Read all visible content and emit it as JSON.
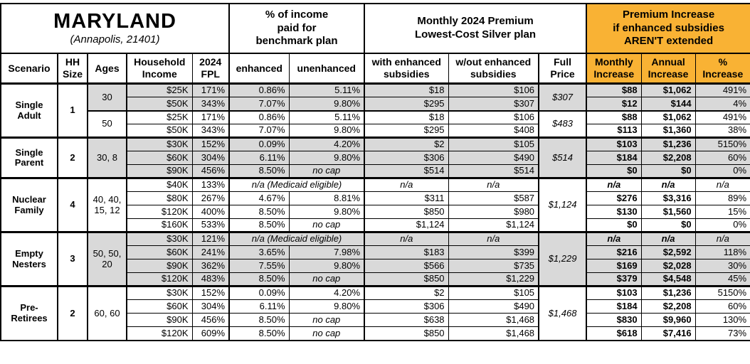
{
  "header": {
    "region_title": "MARYLAND",
    "region_subtitle": "(Annapolis, 21401)",
    "group_pct_income": "% of income\npaid for\nbenchmark plan",
    "group_premium": "Monthly 2024 Premium\nLowest-Cost Silver plan",
    "group_increase": "Premium Increase\nif enhanced subsidies\nAREN'T extended",
    "columns": {
      "scenario": "Scenario",
      "hh_size": "HH\nSize",
      "ages": "Ages",
      "income": "Household\nIncome",
      "fpl": "2024\nFPL",
      "enhanced": "enhanced",
      "unenhanced": "unenhanced",
      "with_subsidies": "with enhanced\nsubsidies",
      "without_subsidies": "w/out enhanced\nsubsidies",
      "full_price": "Full\nPrice",
      "monthly_increase": "Monthly\nIncrease",
      "annual_increase": "Annual\nIncrease",
      "pct_increase": "%\nIncrease"
    }
  },
  "colors": {
    "accent_orange": "#F9B234",
    "row_shade_gray": "#D9D9D9"
  },
  "groups": [
    {
      "scenario": "Single\nAdult",
      "hh_size": "1",
      "ages_cells": [
        {
          "label": "30",
          "span": 2,
          "shaded": true
        },
        {
          "label": "50",
          "span": 2,
          "shaded": false
        }
      ],
      "full_price_cells": [
        {
          "value": "$307",
          "span": 2,
          "shaded": true
        },
        {
          "value": "$483",
          "span": 2,
          "shaded": false
        }
      ],
      "rows": [
        {
          "income": "$25K",
          "fpl": "171%",
          "enhanced": "0.86%",
          "unenhanced": "5.11%",
          "with_subsidies": "$18",
          "without_subsidies": "$106",
          "monthly": "$88",
          "annual": "$1,062",
          "pct": "491%",
          "shaded": true
        },
        {
          "income": "$50K",
          "fpl": "343%",
          "enhanced": "7.07%",
          "unenhanced": "9.80%",
          "with_subsidies": "$295",
          "without_subsidies": "$307",
          "monthly": "$12",
          "annual": "$144",
          "pct": "4%",
          "shaded": true
        },
        {
          "income": "$25K",
          "fpl": "171%",
          "enhanced": "0.86%",
          "unenhanced": "5.11%",
          "with_subsidies": "$18",
          "without_subsidies": "$106",
          "monthly": "$88",
          "annual": "$1,062",
          "pct": "491%",
          "shaded": false,
          "sub_start": true
        },
        {
          "income": "$50K",
          "fpl": "343%",
          "enhanced": "7.07%",
          "unenhanced": "9.80%",
          "with_subsidies": "$295",
          "without_subsidies": "$408",
          "monthly": "$113",
          "annual": "$1,360",
          "pct": "38%",
          "shaded": false
        }
      ]
    },
    {
      "scenario": "Single\nParent",
      "hh_size": "2",
      "ages_cells": [
        {
          "label": "30, 8",
          "span": 3,
          "shaded": true
        }
      ],
      "full_price_cells": [
        {
          "value": "$514",
          "span": 3,
          "shaded": true
        }
      ],
      "rows": [
        {
          "income": "$30K",
          "fpl": "152%",
          "enhanced": "0.09%",
          "unenhanced": "4.20%",
          "with_subsidies": "$2",
          "without_subsidies": "$105",
          "monthly": "$103",
          "annual": "$1,236",
          "pct": "5150%",
          "shaded": true
        },
        {
          "income": "$60K",
          "fpl": "304%",
          "enhanced": "6.11%",
          "unenhanced": "9.80%",
          "with_subsidies": "$306",
          "without_subsidies": "$490",
          "monthly": "$184",
          "annual": "$2,208",
          "pct": "60%",
          "shaded": true
        },
        {
          "income": "$90K",
          "fpl": "456%",
          "enhanced": "8.50%",
          "unenhanced": "no cap",
          "with_subsidies": "$514",
          "without_subsidies": "$514",
          "monthly": "$0",
          "annual": "$0",
          "pct": "0%",
          "shaded": true
        }
      ]
    },
    {
      "scenario": "Nuclear\nFamily",
      "hh_size": "4",
      "ages_cells": [
        {
          "label": "40, 40,\n15, 12",
          "span": 4,
          "shaded": false
        }
      ],
      "full_price_cells": [
        {
          "value": "$1,124",
          "span": 4,
          "shaded": false
        }
      ],
      "rows": [
        {
          "income": "$40K",
          "fpl": "133%",
          "medicaid": true,
          "medicaid_text": "n/a (Medicaid eligible)",
          "with_subsidies": "n/a",
          "without_subsidies": "n/a",
          "monthly": "n/a",
          "annual": "n/a",
          "pct": "n/a",
          "shaded": false
        },
        {
          "income": "$80K",
          "fpl": "267%",
          "enhanced": "4.67%",
          "unenhanced": "8.81%",
          "with_subsidies": "$311",
          "without_subsidies": "$587",
          "monthly": "$276",
          "annual": "$3,316",
          "pct": "89%",
          "shaded": false
        },
        {
          "income": "$120K",
          "fpl": "400%",
          "enhanced": "8.50%",
          "unenhanced": "9.80%",
          "with_subsidies": "$850",
          "without_subsidies": "$980",
          "monthly": "$130",
          "annual": "$1,560",
          "pct": "15%",
          "shaded": false
        },
        {
          "income": "$160K",
          "fpl": "533%",
          "enhanced": "8.50%",
          "unenhanced": "no cap",
          "with_subsidies": "$1,124",
          "without_subsidies": "$1,124",
          "monthly": "$0",
          "annual": "$0",
          "pct": "0%",
          "shaded": false
        }
      ]
    },
    {
      "scenario": "Empty\nNesters",
      "hh_size": "3",
      "ages_cells": [
        {
          "label": "50, 50,\n20",
          "span": 4,
          "shaded": true
        }
      ],
      "full_price_cells": [
        {
          "value": "$1,229",
          "span": 4,
          "shaded": true
        }
      ],
      "rows": [
        {
          "income": "$30K",
          "fpl": "121%",
          "medicaid": true,
          "medicaid_text": "n/a (Medicaid eligible)",
          "with_subsidies": "n/a",
          "without_subsidies": "n/a",
          "monthly": "n/a",
          "annual": "n/a",
          "pct": "n/a",
          "shaded": true
        },
        {
          "income": "$60K",
          "fpl": "241%",
          "enhanced": "3.65%",
          "unenhanced": "7.98%",
          "with_subsidies": "$183",
          "without_subsidies": "$399",
          "monthly": "$216",
          "annual": "$2,592",
          "pct": "118%",
          "shaded": true
        },
        {
          "income": "$90K",
          "fpl": "362%",
          "enhanced": "7.55%",
          "unenhanced": "9.80%",
          "with_subsidies": "$566",
          "without_subsidies": "$735",
          "monthly": "$169",
          "annual": "$2,028",
          "pct": "30%",
          "shaded": true
        },
        {
          "income": "$120K",
          "fpl": "483%",
          "enhanced": "8.50%",
          "unenhanced": "no cap",
          "with_subsidies": "$850",
          "without_subsidies": "$1,229",
          "monthly": "$379",
          "annual": "$4,548",
          "pct": "45%",
          "shaded": true
        }
      ]
    },
    {
      "scenario": "Pre-\nRetirees",
      "hh_size": "2",
      "ages_cells": [
        {
          "label": "60, 60",
          "span": 4,
          "shaded": false
        }
      ],
      "full_price_cells": [
        {
          "value": "$1,468",
          "span": 4,
          "shaded": false
        }
      ],
      "rows": [
        {
          "income": "$30K",
          "fpl": "152%",
          "enhanced": "0.09%",
          "unenhanced": "4.20%",
          "with_subsidies": "$2",
          "without_subsidies": "$105",
          "monthly": "$103",
          "annual": "$1,236",
          "pct": "5150%",
          "shaded": false
        },
        {
          "income": "$60K",
          "fpl": "304%",
          "enhanced": "6.11%",
          "unenhanced": "9.80%",
          "with_subsidies": "$306",
          "without_subsidies": "$490",
          "monthly": "$184",
          "annual": "$2,208",
          "pct": "60%",
          "shaded": false
        },
        {
          "income": "$90K",
          "fpl": "456%",
          "enhanced": "8.50%",
          "unenhanced": "no cap",
          "with_subsidies": "$638",
          "without_subsidies": "$1,468",
          "monthly": "$830",
          "annual": "$9,960",
          "pct": "130%",
          "shaded": false
        },
        {
          "income": "$120K",
          "fpl": "609%",
          "enhanced": "8.50%",
          "unenhanced": "no cap",
          "with_subsidies": "$850",
          "without_subsidies": "$1,468",
          "monthly": "$618",
          "annual": "$7,416",
          "pct": "73%",
          "shaded": false
        }
      ]
    }
  ]
}
